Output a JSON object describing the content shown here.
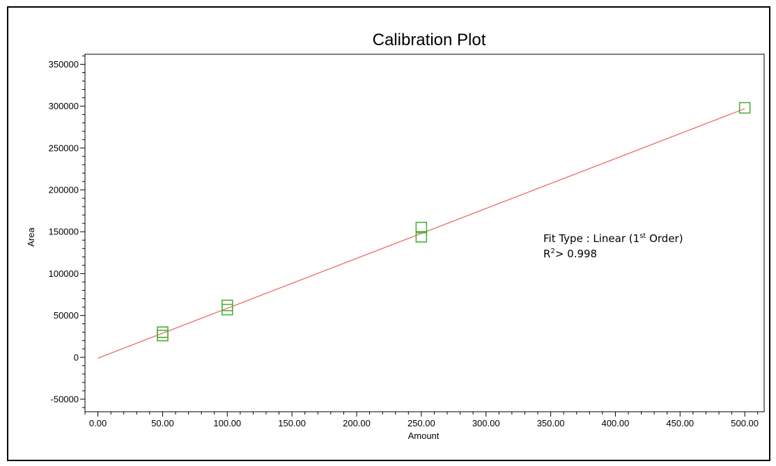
{
  "chart_data": {
    "type": "scatter",
    "title": "Calibration Plot",
    "xlabel": "Amount",
    "ylabel": "Area",
    "xlim": [
      -10,
      515
    ],
    "ylim": [
      -65000,
      362000
    ],
    "x_ticks": [
      0,
      50,
      100,
      150,
      200,
      250,
      300,
      350,
      400,
      450,
      500
    ],
    "x_tick_labels": [
      "0.00",
      "50.00",
      "100.00",
      "150.00",
      "200.00",
      "250.00",
      "300.00",
      "350.00",
      "400.00",
      "450.00",
      "500.00"
    ],
    "y_ticks": [
      -50000,
      0,
      50000,
      100000,
      150000,
      200000,
      250000,
      300000,
      350000
    ],
    "y_tick_labels": [
      "-50000",
      "0",
      "50000",
      "100000",
      "150000",
      "200000",
      "250000",
      "300000",
      "350000"
    ],
    "grid": false,
    "points": {
      "marker": "open-square",
      "color": "#4caf3a",
      "x": [
        50,
        50,
        100,
        100,
        250,
        250,
        500
      ],
      "y": [
        30000,
        26000,
        62000,
        57000,
        155000,
        144000,
        298000
      ]
    },
    "fit_line": {
      "color": "#e8766f",
      "x": [
        0,
        500
      ],
      "y": [
        -1000,
        297000
      ]
    },
    "annotation": {
      "line1_prefix": "Fit Type : Linear (1",
      "line1_sup": "st",
      "line1_suffix": "  Order)",
      "line2_prefix": "R",
      "line2_sup": "2",
      "line2_suffix": "> 0.998"
    }
  }
}
